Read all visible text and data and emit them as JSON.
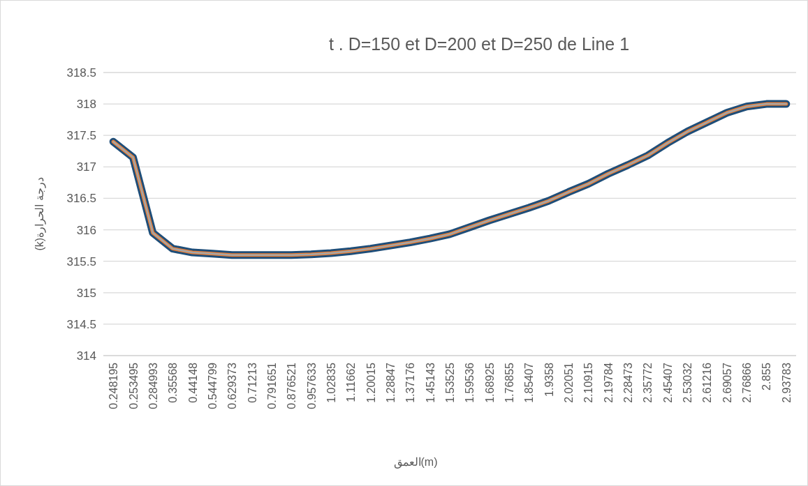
{
  "chart_data": {
    "type": "line",
    "title": "t . D=150 et D=200 et D=250 de  Line 1",
    "xlabel": "العمق(m)",
    "ylabel": "(k)درجة الحرارة",
    "categories": [
      "0.248195",
      "0.253495",
      "0.284993",
      "0.35568",
      "0.44148",
      "0.544799",
      "0.629373",
      "0.71213",
      "0.791651",
      "0.876521",
      "0.957633",
      "1.02835",
      "1.11662",
      "1.20015",
      "1.28847",
      "1.37176",
      "1.45143",
      "1.53525",
      "1.59536",
      "1.68925",
      "1.76855",
      "1.85407",
      "1.9358",
      "2.02051",
      "2.10915",
      "2.19784",
      "2.28473",
      "2.35772",
      "2.45407",
      "2.53032",
      "2.61216",
      "2.69057",
      "2.76866",
      "2.855",
      "2.93783"
    ],
    "series": [
      {
        "color": "#1f4e79",
        "values": [
          317.4,
          317.15,
          315.95,
          315.7,
          315.64,
          315.62,
          315.6,
          315.6,
          315.6,
          315.6,
          315.61,
          315.63,
          315.66,
          315.7,
          315.75,
          315.8,
          315.86,
          315.93,
          316.04,
          316.15,
          316.25,
          316.35,
          316.46,
          316.6,
          316.73,
          316.89,
          317.03,
          317.18,
          317.38,
          317.56,
          317.71,
          317.86,
          317.96,
          318.0,
          318.0
        ]
      },
      {
        "color": "#ed7d31",
        "values": [
          317.4,
          317.15,
          315.95,
          315.7,
          315.64,
          315.62,
          315.6,
          315.6,
          315.6,
          315.6,
          315.61,
          315.63,
          315.66,
          315.7,
          315.75,
          315.8,
          315.86,
          315.93,
          316.04,
          316.15,
          316.25,
          316.35,
          316.46,
          316.6,
          316.73,
          316.89,
          317.03,
          317.18,
          317.38,
          317.56,
          317.71,
          317.86,
          317.96,
          318.0,
          318.0
        ]
      },
      {
        "color": "#a5a5a5",
        "values": [
          317.4,
          317.15,
          315.95,
          315.7,
          315.64,
          315.62,
          315.6,
          315.6,
          315.6,
          315.6,
          315.61,
          315.63,
          315.66,
          315.7,
          315.75,
          315.8,
          315.86,
          315.93,
          316.04,
          316.15,
          316.25,
          316.35,
          316.46,
          316.6,
          316.73,
          316.89,
          317.03,
          317.18,
          317.38,
          317.56,
          317.71,
          317.86,
          317.96,
          318.0,
          318.0
        ]
      }
    ],
    "ylim": [
      314,
      318.5
    ],
    "yticks": [
      314,
      314.5,
      315,
      315.5,
      316,
      316.5,
      317,
      317.5,
      318,
      318.5
    ],
    "grid": "y"
  }
}
